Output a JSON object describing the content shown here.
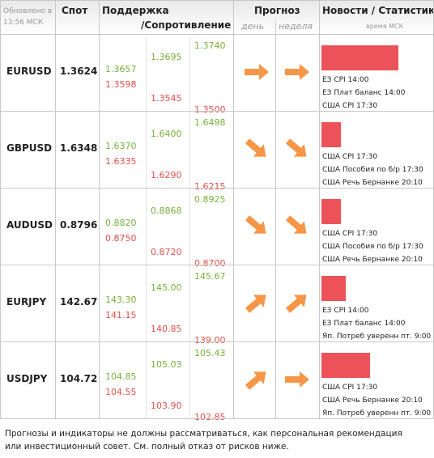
{
  "header": {
    "updated": "Обновлено в 13:56 МСК",
    "spot": "Спот",
    "support": "Поддержка",
    "resistance": "/Сопротивление",
    "forecast": "Прогноз",
    "day": "день",
    "week": "неделя",
    "news": "Новости / Статистика",
    "news_time": "время МСК"
  },
  "rows": [
    {
      "pair": "EURUSD",
      "spot": "1.3624",
      "levels": [
        [
          "1.3657",
          "1.3598"
        ],
        [
          "1.3695",
          "1.3545"
        ],
        [
          "1.3740",
          "1.3500"
        ]
      ],
      "news": [
        "ЕЗ CPI 14:00",
        "ЕЗ Плат баланс 14:00",
        "США CPI 17:30"
      ]
    },
    {
      "pair": "GBPUSD",
      "spot": "1.6348",
      "levels": [
        [
          "1.6370",
          "1.6335"
        ],
        [
          "1.6400",
          "1.6290"
        ],
        [
          "1.6498",
          "1.6215"
        ]
      ],
      "news": [
        "США CPI 17:30",
        "США Пособия по б/р 17:30",
        "США Речь Бернанке 20:10"
      ]
    },
    {
      "pair": "AUDUSD",
      "spot": "0.8796",
      "levels": [
        [
          "0.8820",
          "0.8750"
        ],
        [
          "0.8868",
          "0.8720"
        ],
        [
          "0.8925",
          "0.8700"
        ]
      ],
      "news": [
        "США CPI 17:30",
        "США Пособия по б/р 17:30",
        "США Речь Бернанке 20:10"
      ]
    },
    {
      "pair": "EURJPY",
      "spot": "142.67",
      "levels": [
        [
          "143.30",
          "141.15"
        ],
        [
          "145.00",
          "140.85"
        ],
        [
          "145.67",
          "139.00"
        ]
      ],
      "news": [
        "ЕЗ CPI 14:00",
        "ЕЗ Плат баланс 14:00",
        "Яп. Потреб уверенн пт. 9:00"
      ]
    },
    {
      "pair": "USDJPY",
      "spot": "104.72",
      "levels": [
        [
          "104.85",
          "104.55"
        ],
        [
          "105.03",
          "103.90"
        ],
        [
          "105.43",
          "102.85"
        ]
      ],
      "news": [
        "США CPI 17:30",
        "США Речь Бернанке 20:10",
        "Яп. Потреб уверенн пт. 9:00"
      ]
    }
  ],
  "disclaimer": "Прогнозы и индикаторы не должны рассматриваться, как персональная рекомендация или инвестиционный совет. См. полный отказ от рисков ниже."
}
